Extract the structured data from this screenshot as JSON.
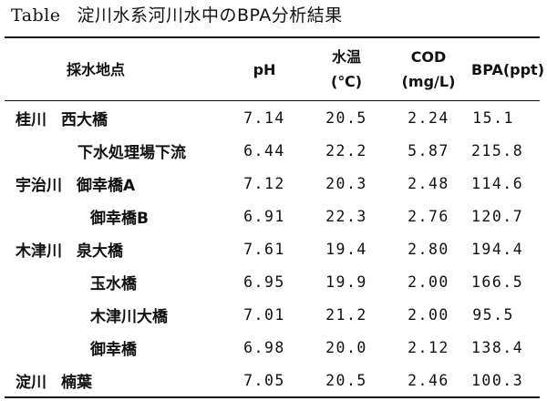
{
  "caption": {
    "label": "Table",
    "title": "淀川水系河川水中のBPA分析結果"
  },
  "headers": {
    "site": "採水地点",
    "ph": "pH",
    "temp_line1": "水温",
    "temp_line2": "(℃)",
    "cod_line1": "COD",
    "cod_line2": "(mg/L)",
    "bpa": "BPA(ppt)"
  },
  "rows": [
    {
      "river": "桂川",
      "site": "西大橋",
      "ph": "7.14",
      "temp": "20.5",
      "cod": "2.24",
      "bpa": "15.1"
    },
    {
      "river": "",
      "site": "下水処理場下流",
      "ph": "6.44",
      "temp": "22.2",
      "cod": "5.87",
      "bpa": "215.8"
    },
    {
      "river": "宇治川",
      "site": "御幸橋A",
      "ph": "7.12",
      "temp": "20.3",
      "cod": "2.48",
      "bpa": "114.6"
    },
    {
      "river": "",
      "site": "御幸橋B",
      "ph": "6.91",
      "temp": "22.3",
      "cod": "2.76",
      "bpa": "120.7"
    },
    {
      "river": "木津川",
      "site": "泉大橋",
      "ph": "7.61",
      "temp": "19.4",
      "cod": "2.80",
      "bpa": "194.4"
    },
    {
      "river": "",
      "site": "玉水橋",
      "ph": "6.95",
      "temp": "19.9",
      "cod": "2.00",
      "bpa": "166.5"
    },
    {
      "river": "",
      "site": "木津川大橋",
      "ph": "7.01",
      "temp": "21.2",
      "cod": "2.00",
      "bpa": "95.5"
    },
    {
      "river": "",
      "site": "御幸橋",
      "ph": "6.98",
      "temp": "20.0",
      "cod": "2.12",
      "bpa": "138.4"
    },
    {
      "river": "淀川",
      "site": "楠葉",
      "ph": "7.05",
      "temp": "20.5",
      "cod": "2.46",
      "bpa": "100.3"
    }
  ]
}
